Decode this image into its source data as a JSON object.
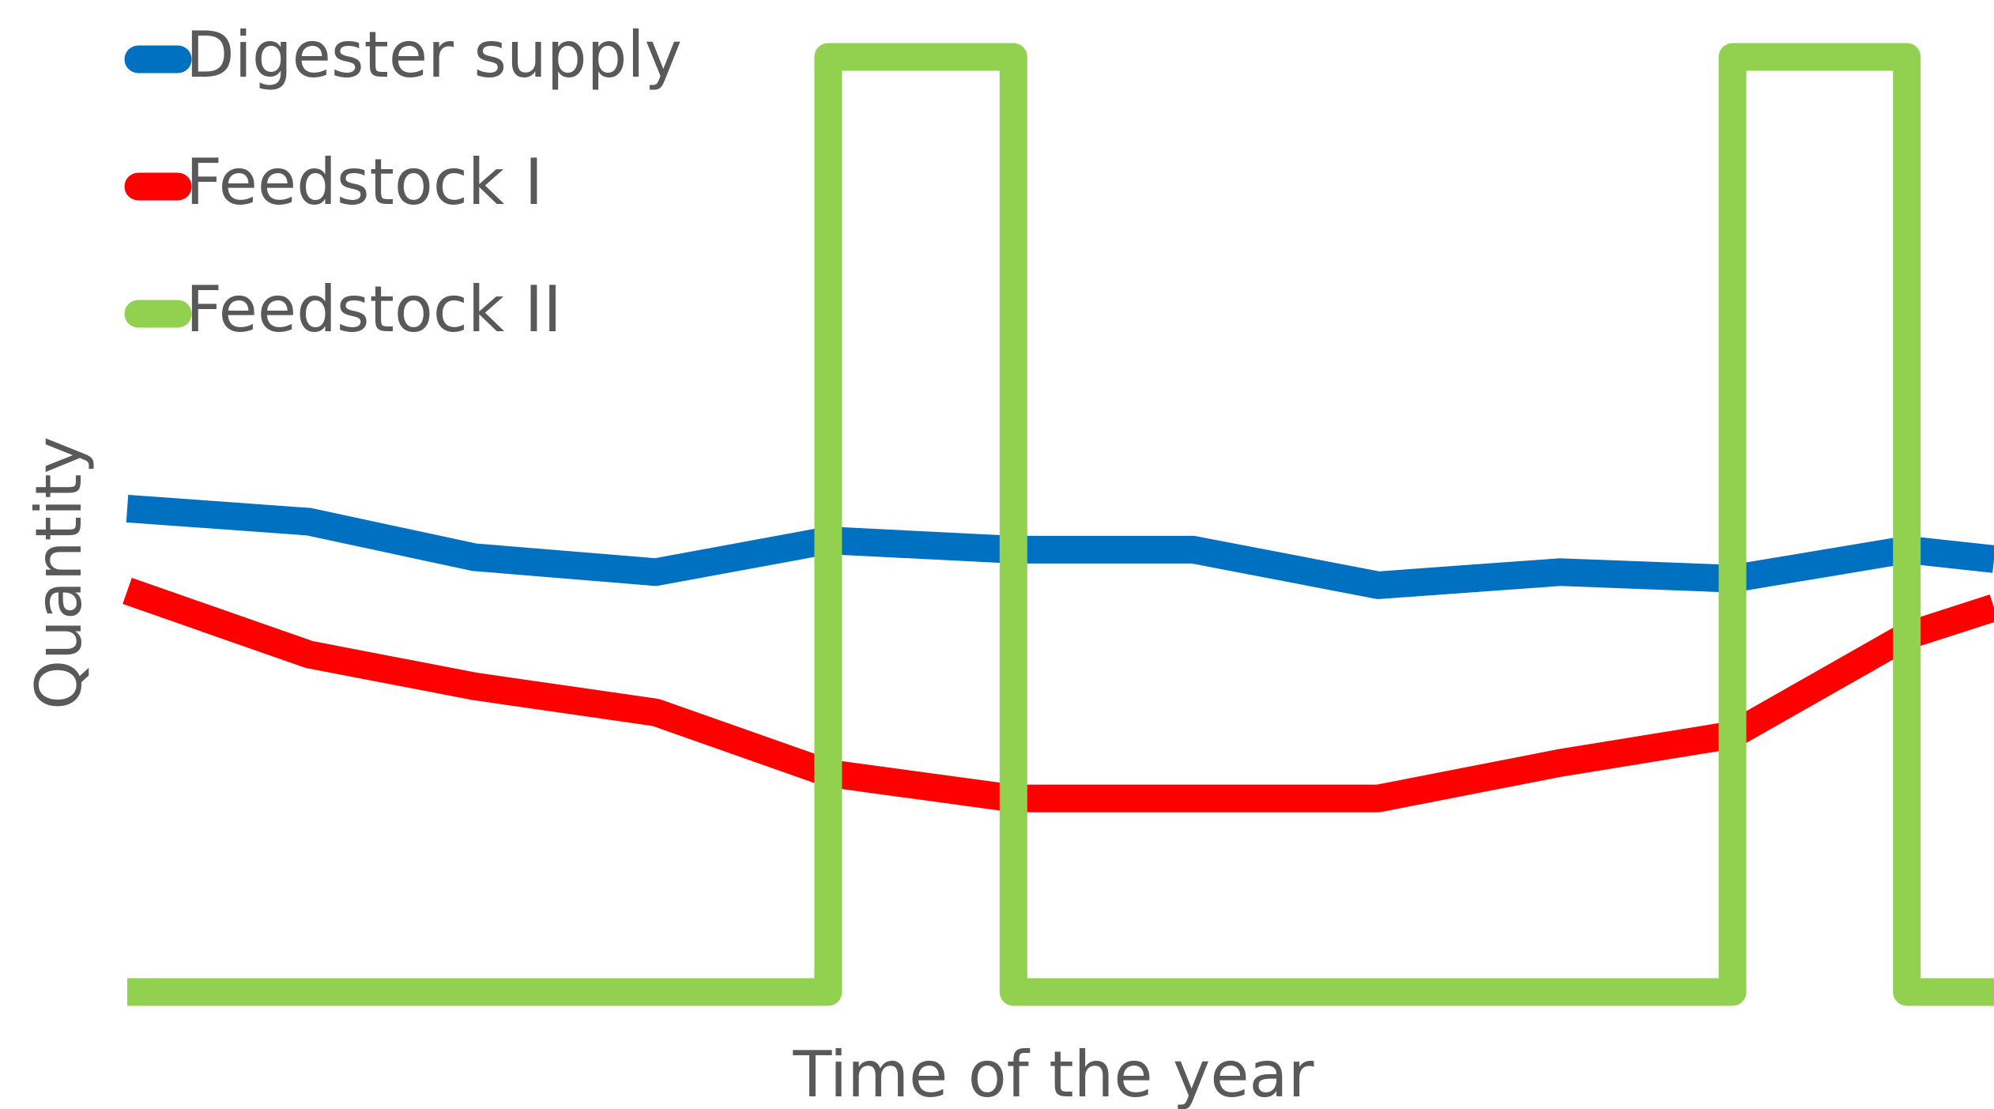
{
  "chart_data": {
    "type": "line",
    "x_label": "Time of the year",
    "y_label": "Quantity",
    "xlim": [
      0,
      10.28
    ],
    "ylim": [
      0,
      100
    ],
    "legend": "top-left",
    "series": [
      {
        "name": "Digester supply",
        "color": "#0070c0",
        "x": [
          0,
          1,
          1.91,
          2.91,
          3.86,
          4.88,
          5.87,
          6.89,
          7.89,
          8.84,
          9.8,
          10.28
        ],
        "values": [
          51.7,
          50.3,
          46.5,
          44.9,
          48.3,
          47.3,
          47.3,
          43.5,
          44.9,
          44.2,
          47.3,
          46.3
        ]
      },
      {
        "name": "Feedstock I",
        "color": "#ff0000",
        "x": [
          0,
          1,
          1.91,
          2.91,
          3.86,
          4.88,
          5.87,
          6.89,
          7.89,
          8.84,
          9.8,
          10.28
        ],
        "values": [
          42.9,
          36.1,
          32.7,
          29.9,
          23.4,
          20.7,
          20.7,
          20.7,
          24.5,
          27.5,
          38.1,
          41.1
        ]
      },
      {
        "name": "Feedstock II",
        "color": "#92d050",
        "x": [
          0,
          3.86,
          3.86,
          4.88,
          4.88,
          8.84,
          8.84,
          9.8,
          9.8,
          10.28
        ],
        "values": [
          0,
          0,
          100,
          100,
          0,
          0,
          100,
          100,
          0,
          0
        ]
      }
    ]
  }
}
